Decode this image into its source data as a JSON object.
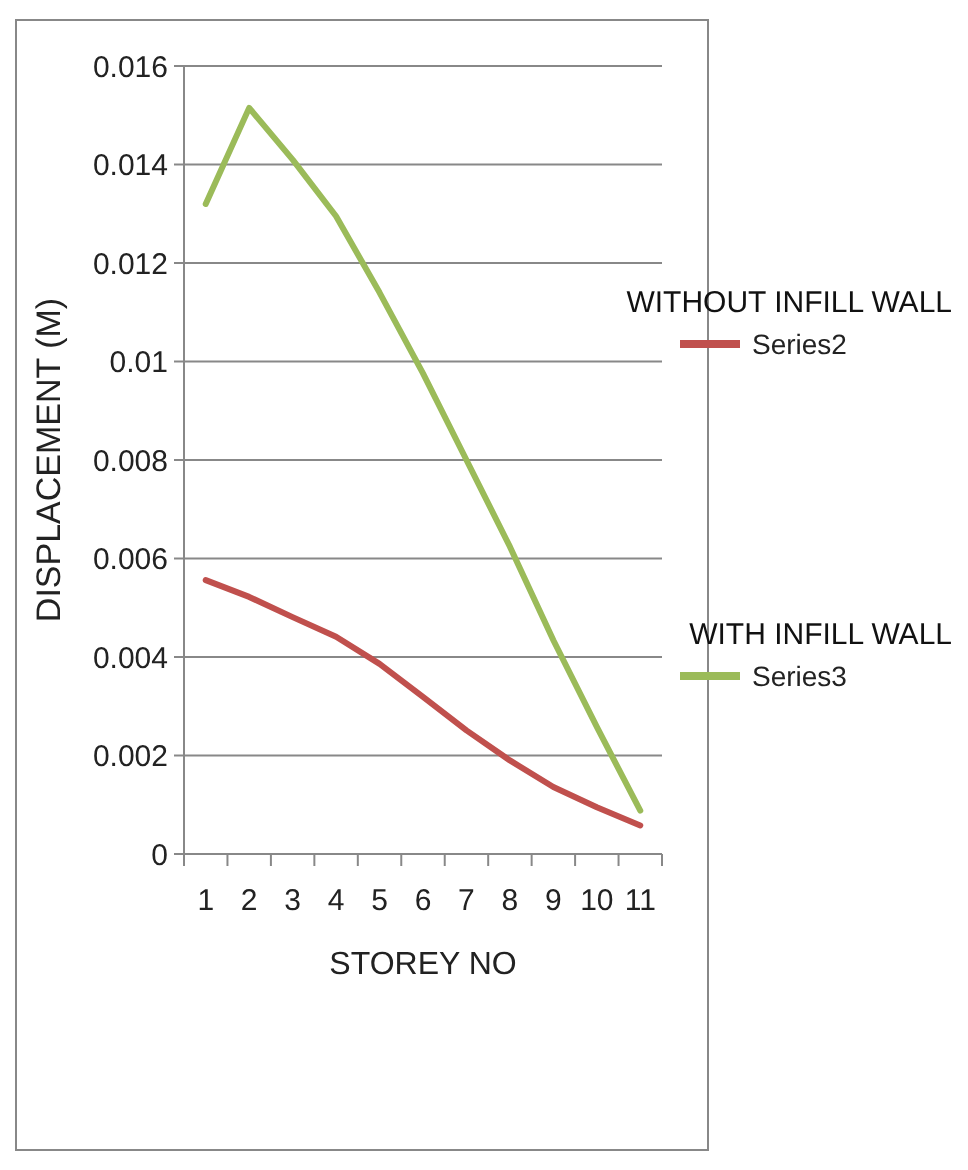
{
  "chart_data": {
    "type": "line",
    "xlabel": "STOREY NO",
    "ylabel": "DISPLACEMENT  (M)",
    "categories": [
      "1",
      "2",
      "3",
      "4",
      "5",
      "6",
      "7",
      "8",
      "9",
      "10",
      "11"
    ],
    "series": [
      {
        "name": "Series2",
        "color": "#c0504d",
        "values": [
          0.00556,
          0.00522,
          0.00481,
          0.00441,
          0.00386,
          0.00319,
          0.00251,
          0.0019,
          0.00136,
          0.00095,
          0.00058
        ]
      },
      {
        "name": "Series3",
        "color": "#9bbb59",
        "values": [
          0.0132,
          0.01515,
          0.0141,
          0.01295,
          0.0114,
          0.00976,
          0.008,
          0.00624,
          0.00434,
          0.00258,
          0.00088
        ]
      }
    ],
    "annotations": [
      "WITHOUT INFILL WALL",
      "WITH INFILL WALL"
    ],
    "ylim": [
      0,
      0.016
    ],
    "yticks": [
      0,
      0.002,
      0.004,
      0.006,
      0.008,
      0.01,
      0.012,
      0.014,
      0.016
    ],
    "grid": "y",
    "legend": "right",
    "marker": "none",
    "line_style": "solid"
  }
}
